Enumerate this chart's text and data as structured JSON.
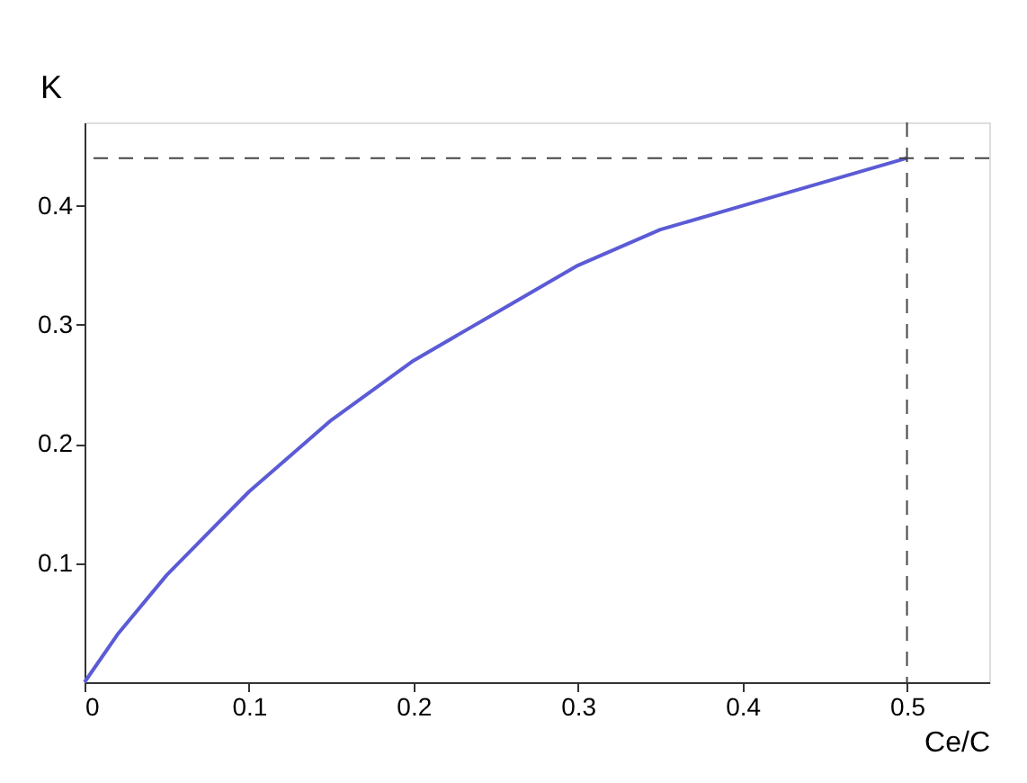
{
  "chart_data": {
    "type": "line",
    "xlabel": "Ce/C",
    "ylabel": "K",
    "x": [
      0,
      0.02,
      0.05,
      0.1,
      0.15,
      0.2,
      0.25,
      0.3,
      0.35,
      0.4,
      0.45,
      0.5
    ],
    "series": [
      {
        "color": "#5b5bd6",
        "values": [
          0,
          0.04,
          0.09,
          0.16,
          0.22,
          0.27,
          0.31,
          0.35,
          0.38,
          0.4,
          0.42,
          0.44
        ]
      }
    ],
    "xlim": [
      0,
      0.55
    ],
    "ylim": [
      0,
      0.47
    ],
    "xticks": [
      0,
      0.1,
      0.2,
      0.3,
      0.4,
      0.5
    ],
    "yticks": [
      0.1,
      0.2,
      0.3,
      0.4
    ],
    "ref_lines": [
      {
        "axis": "y",
        "value": 0.44,
        "color": "#444444",
        "line_style": "dashed"
      },
      {
        "axis": "x",
        "value": 0.5,
        "color": "#444444",
        "line_style": "dashed"
      }
    ],
    "grid": false,
    "marker": "none",
    "line_style": "solid"
  }
}
